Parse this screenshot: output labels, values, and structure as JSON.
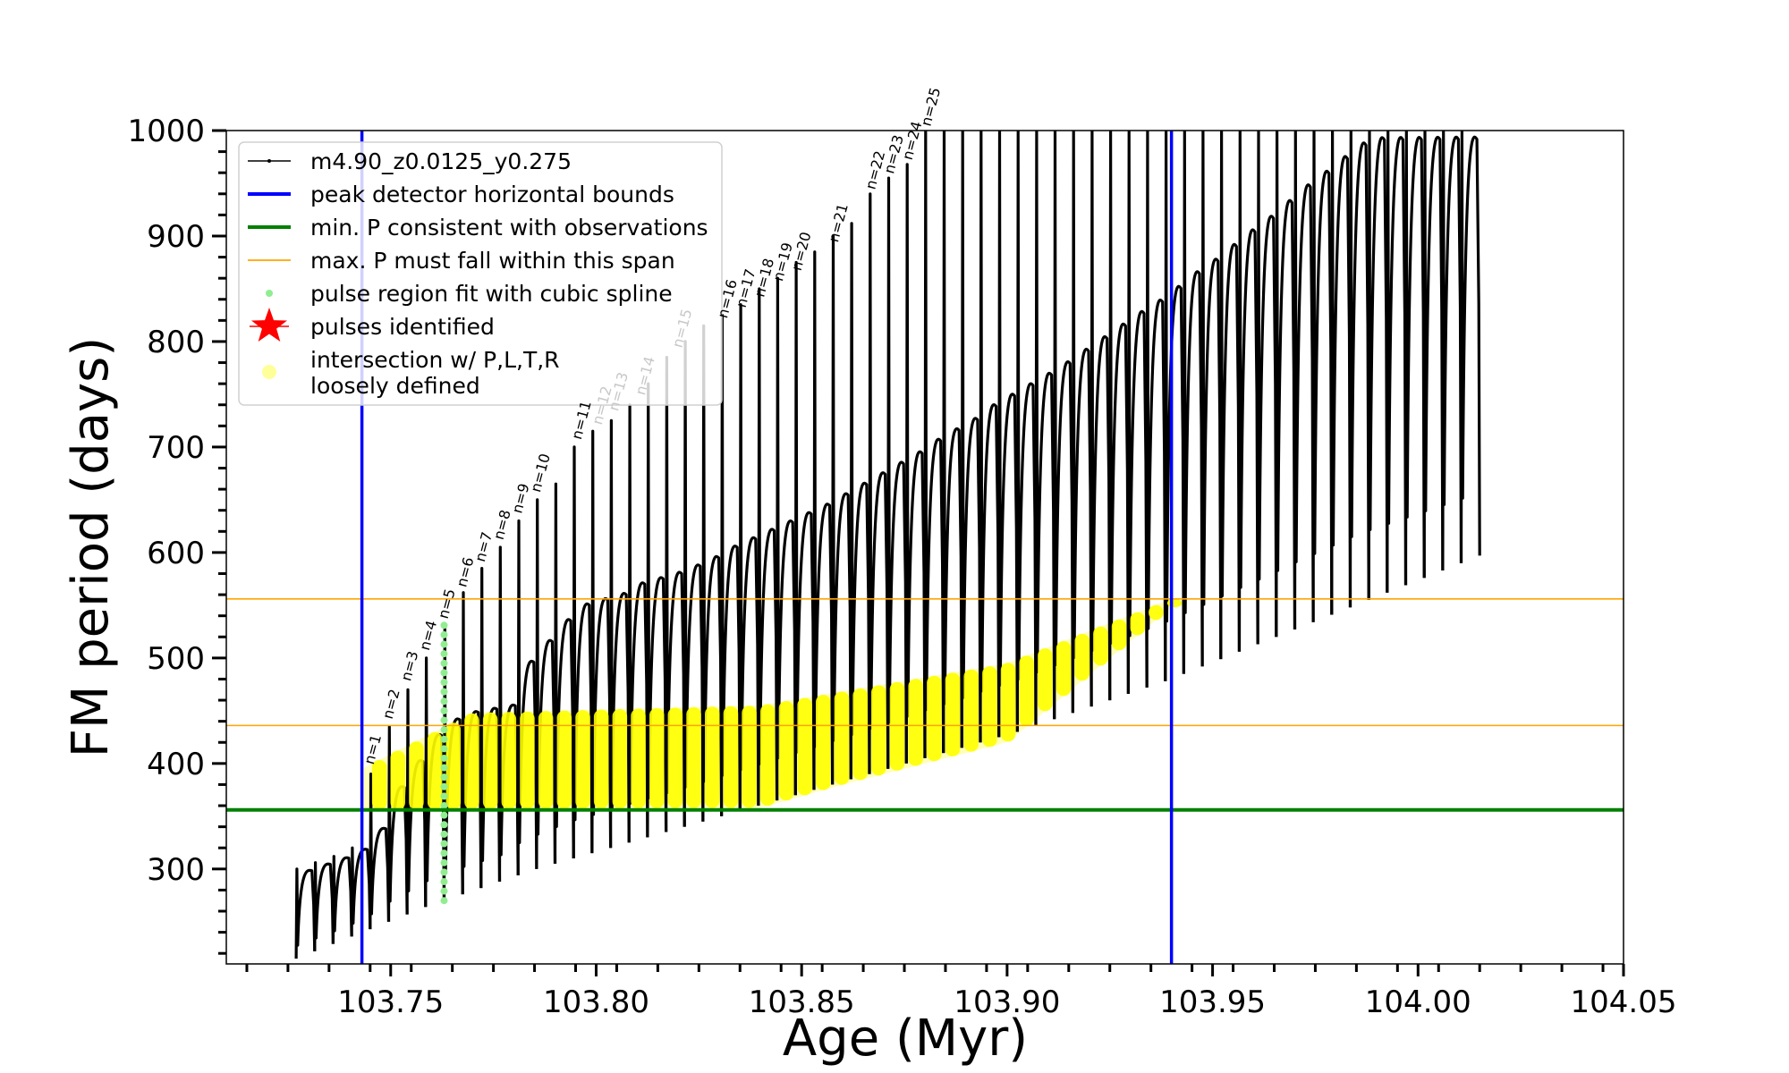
{
  "chart_data": {
    "type": "line",
    "xlabel": "Age (Myr)",
    "ylabel": "FM period (days)",
    "xlim": [
      103.71,
      104.05
    ],
    "ylim": [
      210,
      1000
    ],
    "x_ticks": [
      "103.75",
      "103.80",
      "103.85",
      "103.90",
      "103.95",
      "104.00",
      "104.05"
    ],
    "x_tick_values": [
      103.75,
      103.8,
      103.85,
      103.9,
      103.95,
      104.0,
      104.05
    ],
    "y_ticks": [
      "300",
      "400",
      "500",
      "600",
      "700",
      "800",
      "900",
      "1000"
    ],
    "y_tick_values": [
      300,
      400,
      500,
      600,
      700,
      800,
      900,
      1000
    ],
    "legend_position": "upper left",
    "legend": [
      {
        "label": "m4.90_z0.0125_y0.275",
        "marker": "line-dot",
        "color": "#000000"
      },
      {
        "label": "peak detector horizontal bounds",
        "marker": "line",
        "color": "#0000ff"
      },
      {
        "label": "min. P consistent with observations",
        "marker": "line",
        "color": "#008000"
      },
      {
        "label": "max. P must fall within this span",
        "marker": "thin-line",
        "color": "#ffa500"
      },
      {
        "label": "pulse region fit with cubic spline",
        "marker": "dot",
        "color": "#90ee90"
      },
      {
        "label": "pulses identified",
        "marker": "star",
        "color": "#ff0000"
      },
      {
        "label": "intersection w/ P,L,T,R",
        "label2": "loosely defined",
        "marker": "circle",
        "color": "#ffff99"
      }
    ],
    "reference_lines": {
      "vertical": [
        103.743,
        103.94
      ],
      "min_p": 356,
      "max_p_span": [
        436,
        556
      ]
    },
    "series": [
      {
        "name": "m4.90_z0.0125_y0.275",
        "color": "#000000",
        "pulse_ages": [
          103.727,
          103.7315,
          103.736,
          103.7405,
          103.745,
          103.7495,
          103.754,
          103.7585,
          103.763,
          103.7675,
          103.772,
          103.7765,
          103.781,
          103.7855,
          103.79,
          103.7945,
          103.799,
          103.8035,
          103.808,
          103.8125,
          103.817,
          103.8215,
          103.826,
          103.8305,
          103.835,
          103.8395,
          103.844,
          103.8485,
          103.853,
          103.8575,
          103.862,
          103.8665,
          103.871,
          103.8755,
          103.88,
          103.8845,
          103.889,
          103.8935,
          103.898,
          103.9025,
          103.907,
          103.9115,
          103.916,
          103.9205,
          103.925,
          103.9295,
          103.934,
          103.9385,
          103.943,
          103.9475,
          103.952,
          103.9565,
          103.961,
          103.9655,
          103.97,
          103.9745,
          103.979,
          103.9835,
          103.988,
          103.9925,
          103.997,
          104.0015,
          104.006,
          104.0105
        ],
        "pulse_min_period": [
          215,
          222,
          229,
          236,
          243,
          250,
          257,
          264,
          270,
          276,
          282,
          288,
          294,
          300,
          305,
          310,
          315,
          320,
          325,
          330,
          335,
          340,
          345,
          350,
          355,
          360,
          365,
          370,
          375,
          380,
          385,
          390,
          395,
          400,
          405,
          410,
          415,
          420,
          425,
          430,
          436,
          442,
          448,
          454,
          460,
          466,
          472,
          478,
          485,
          492,
          499,
          506,
          513,
          520,
          527,
          534,
          541,
          548,
          555,
          562,
          569,
          576,
          583,
          590
        ],
        "pulse_plateau_period": [
          300,
          306,
          312,
          320,
          340,
          380,
          405,
          430,
          445,
          452,
          455,
          458,
          500,
          520,
          540,
          555,
          560,
          565,
          575,
          580,
          585,
          592,
          600,
          610,
          618,
          626,
          634,
          642,
          650,
          660,
          670,
          680,
          690,
          700,
          712,
          722,
          732,
          745,
          755,
          765,
          775,
          786,
          798,
          810,
          822,
          834,
          845,
          858,
          872,
          884,
          898,
          912,
          925,
          940,
          955,
          968,
          982,
          995,
          1000,
          1000,
          1000,
          1000,
          1000,
          1000
        ],
        "pulse_spike_period": [
          300,
          306,
          312,
          320,
          390,
          435,
          470,
          500,
          530,
          562,
          585,
          605,
          630,
          650,
          665,
          700,
          715,
          725,
          740,
          760,
          785,
          800,
          815,
          825,
          835,
          850,
          860,
          875,
          885,
          900,
          912,
          940,
          955,
          968,
          1000,
          1000,
          1000,
          1000,
          1000,
          1000,
          1000,
          1000,
          1000,
          1000,
          1000,
          1000,
          1000,
          1000,
          1000,
          1000,
          1000,
          1000,
          1000,
          1000,
          1000,
          1000,
          1000,
          1000,
          1000,
          1000,
          1000,
          1000,
          1000,
          1000
        ]
      }
    ],
    "pulse_labels": [
      {
        "text": "n=1",
        "x": 103.7445,
        "y": 395,
        "faint": false
      },
      {
        "text": "n=2",
        "x": 103.749,
        "y": 438,
        "faint": false
      },
      {
        "text": "n=3",
        "x": 103.7535,
        "y": 474,
        "faint": false
      },
      {
        "text": "n=4",
        "x": 103.758,
        "y": 503,
        "faint": false
      },
      {
        "text": "n=5",
        "x": 103.7625,
        "y": 533,
        "faint": false
      },
      {
        "text": "n=6",
        "x": 103.767,
        "y": 563,
        "faint": false
      },
      {
        "text": "n=7",
        "x": 103.7715,
        "y": 587,
        "faint": false
      },
      {
        "text": "n=8",
        "x": 103.776,
        "y": 608,
        "faint": false
      },
      {
        "text": "n=9",
        "x": 103.7805,
        "y": 633,
        "faint": false
      },
      {
        "text": "n=10",
        "x": 103.785,
        "y": 653,
        "faint": false
      },
      {
        "text": "n=11",
        "x": 103.795,
        "y": 703,
        "faint": false
      },
      {
        "text": "n=12",
        "x": 103.8,
        "y": 717,
        "faint": true
      },
      {
        "text": "n=13",
        "x": 103.804,
        "y": 730,
        "faint": true
      },
      {
        "text": "n=14",
        "x": 103.8105,
        "y": 745,
        "faint": true
      },
      {
        "text": "n=15",
        "x": 103.8195,
        "y": 790,
        "faint": true
      },
      {
        "text": "n=16",
        "x": 103.8305,
        "y": 818,
        "faint": false
      },
      {
        "text": "n=17",
        "x": 103.835,
        "y": 828,
        "faint": false
      },
      {
        "text": "n=18",
        "x": 103.8395,
        "y": 838,
        "faint": false
      },
      {
        "text": "n=19",
        "x": 103.844,
        "y": 853,
        "faint": false
      },
      {
        "text": "n=20",
        "x": 103.8485,
        "y": 863,
        "faint": false
      },
      {
        "text": "n=21",
        "x": 103.8575,
        "y": 890,
        "faint": false
      },
      {
        "text": "n=22",
        "x": 103.8665,
        "y": 940,
        "faint": false
      },
      {
        "text": "n=23",
        "x": 103.871,
        "y": 955,
        "faint": false
      },
      {
        "text": "n=24",
        "x": 103.8755,
        "y": 968,
        "faint": false
      },
      {
        "text": "n=25",
        "x": 103.88,
        "y": 1000,
        "faint": false
      }
    ],
    "spline_fit": {
      "x": 103.763,
      "y_range": [
        270,
        533
      ],
      "color": "#90ee90"
    },
    "intersection_band": {
      "color": "#ffff00",
      "x_range": [
        103.743,
        103.94
      ],
      "lower": [
        [
          103.743,
          356
        ],
        [
          103.84,
          358
        ],
        [
          103.86,
          380
        ],
        [
          103.9,
          420
        ],
        [
          103.94,
          548
        ]
      ],
      "upper": [
        [
          103.743,
          395
        ],
        [
          103.77,
          448
        ],
        [
          103.84,
          455
        ],
        [
          103.9,
          495
        ],
        [
          103.94,
          556
        ]
      ]
    }
  }
}
